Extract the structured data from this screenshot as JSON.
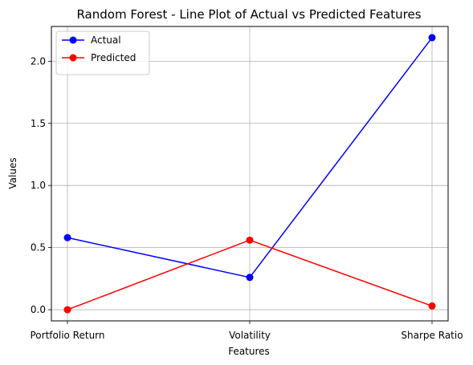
{
  "chart_data": {
    "type": "line",
    "title": "Random Forest - Line Plot of Actual vs Predicted Features",
    "xlabel": "Features",
    "ylabel": "Values",
    "categories": [
      "Portfolio Return",
      "Volatility",
      "Sharpe Ratio"
    ],
    "series": [
      {
        "name": "Actual",
        "values": [
          0.58,
          0.26,
          2.19
        ],
        "color": "#0000ff"
      },
      {
        "name": "Predicted",
        "values": [
          0.0,
          0.56,
          0.03
        ],
        "color": "#ff0000"
      }
    ],
    "ylim": [
      -0.09,
      2.28
    ],
    "yticks": [
      0.0,
      0.5,
      1.0,
      1.5,
      2.0
    ],
    "ytick_labels": [
      "0.0",
      "0.5",
      "1.0",
      "1.5",
      "2.0"
    ],
    "grid": true,
    "legend_position": "top-left",
    "marker": "circle"
  }
}
